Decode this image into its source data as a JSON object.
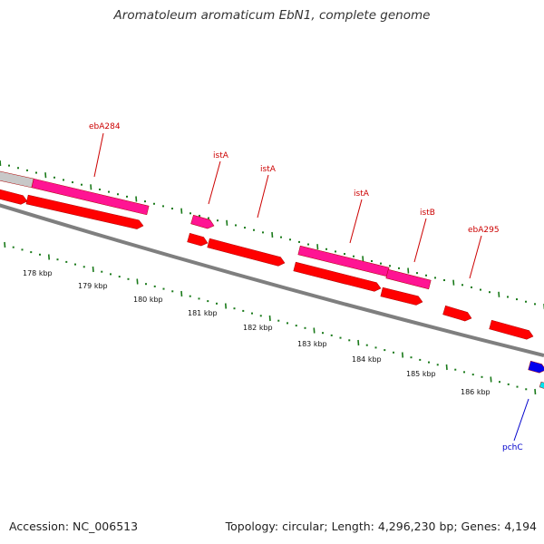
{
  "title": "Aromatoleum aromaticum EbN1, complete genome",
  "footer": {
    "accession": "Accession: NC_006513",
    "summary": "Topology: circular; Length: 4,296,230 bp; Genes: 4,194"
  },
  "colors": {
    "cds": "#ff0000",
    "mobile_element": "#ff1493",
    "other_feature": "#c8c8c8",
    "backbone": "#7f7f7f",
    "tick": "#1a7a1a",
    "label_red": "#cc0000",
    "label_blue": "#0000cc",
    "blue_feature": "#0000ee",
    "cyan_feature": "#00e5ee"
  },
  "ticks": [
    {
      "label": "178 kbp"
    },
    {
      "label": "179 kbp"
    },
    {
      "label": "180 kbp"
    },
    {
      "label": "181 kbp"
    },
    {
      "label": "182 kbp"
    },
    {
      "label": "183 kbp"
    },
    {
      "label": "184 kbp"
    },
    {
      "label": "185 kbp"
    },
    {
      "label": "186 kbp"
    }
  ],
  "gene_labels": [
    {
      "text": "ebA284",
      "color": "label_red"
    },
    {
      "text": "istA",
      "color": "label_red"
    },
    {
      "text": "istA",
      "color": "label_red"
    },
    {
      "text": "istA",
      "color": "label_red"
    },
    {
      "text": "istB",
      "color": "label_red"
    },
    {
      "text": "ebA295",
      "color": "label_red"
    },
    {
      "text": "pchC",
      "color": "label_blue"
    }
  ]
}
